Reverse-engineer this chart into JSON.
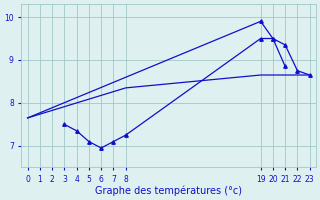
{
  "bg_color": "#dff0f0",
  "line_color": "#1010cc",
  "grid_color": "#a0c8c8",
  "xlabel": "Graphe des températures (°c)",
  "xlabel_color": "#1010cc",
  "xlim": [
    -0.5,
    23.5
  ],
  "ylim": [
    6.5,
    10.3
  ],
  "yticks": [
    7,
    8,
    9,
    10
  ],
  "xticks": [
    0,
    1,
    2,
    3,
    4,
    5,
    6,
    7,
    8,
    19,
    20,
    21,
    22,
    23
  ],
  "line1": {
    "x": [
      0,
      19
    ],
    "y": [
      7.65,
      9.9
    ]
  },
  "line2": {
    "x": [
      0,
      8,
      19,
      23
    ],
    "y": [
      7.65,
      8.35,
      8.65,
      8.65
    ]
  },
  "line3": {
    "x": [
      3,
      4,
      5,
      6,
      7,
      8,
      19,
      20,
      21
    ],
    "y": [
      7.5,
      7.35,
      7.1,
      6.95,
      7.1,
      7.25,
      9.5,
      9.5,
      8.85
    ]
  },
  "line4": {
    "x": [
      19,
      20,
      21,
      22,
      23
    ],
    "y": [
      9.9,
      9.5,
      9.35,
      8.75,
      8.65
    ]
  },
  "tick_fontsize": 5.5,
  "xlabel_fontsize": 7,
  "linewidth": 0.9,
  "markersize": 2.5
}
